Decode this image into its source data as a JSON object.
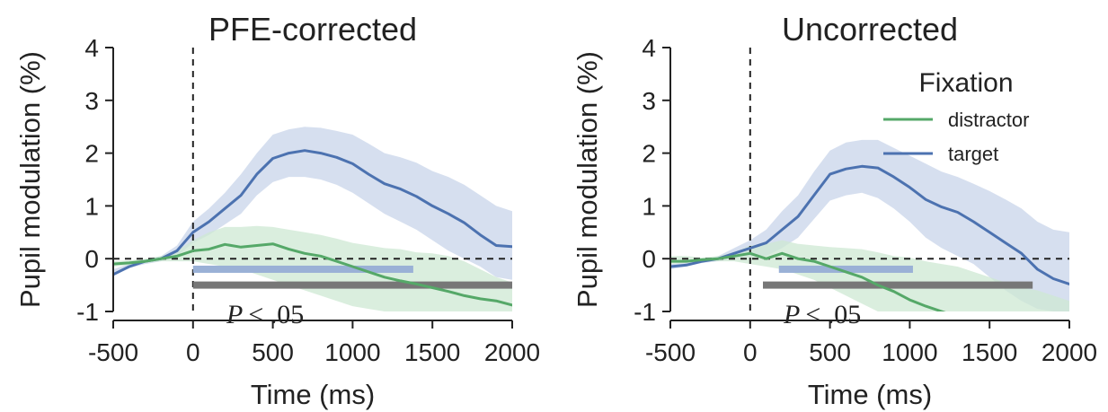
{
  "colors": {
    "target": "#4c72b0",
    "distractor": "#55a868",
    "target_band": "#c8d4ea",
    "distractor_band": "#cde8d3",
    "sig_target": "#9ab1d6",
    "sig_both": "#777777",
    "axis": "#222222"
  },
  "chart_data": [
    {
      "type": "line",
      "title": "PFE-corrected",
      "xlabel": "Time (ms)",
      "ylabel": "Pupil modulation (%)",
      "xlim": [
        -500,
        2000
      ],
      "ylim": [
        -1,
        4
      ],
      "xticks": [
        -500,
        0,
        500,
        1000,
        1500,
        2000
      ],
      "yticks": [
        -1,
        0,
        1,
        2,
        3,
        4
      ],
      "xtick_labels": [
        "-500",
        "0",
        "500",
        "1000",
        "1500",
        "2000"
      ],
      "ytick_labels": [
        "-1",
        "0",
        "1",
        "2",
        "3",
        "4"
      ],
      "grid": false,
      "reference_lines": [
        {
          "axis": "x",
          "value": 0,
          "style": "dashed"
        },
        {
          "axis": "y",
          "value": 0,
          "style": "dashed"
        }
      ],
      "x": [
        -500,
        -400,
        -300,
        -200,
        -100,
        0,
        100,
        200,
        300,
        400,
        500,
        600,
        700,
        800,
        900,
        1000,
        1100,
        1200,
        1300,
        1400,
        1500,
        1600,
        1700,
        1800,
        1900,
        2000
      ],
      "series": [
        {
          "name": "target",
          "color_key": "target",
          "values": [
            -0.3,
            -0.15,
            -0.05,
            0.0,
            0.15,
            0.5,
            0.7,
            0.95,
            1.2,
            1.6,
            1.9,
            2.0,
            2.05,
            2.0,
            1.92,
            1.8,
            1.6,
            1.42,
            1.32,
            1.18,
            1.0,
            0.85,
            0.68,
            0.45,
            0.25,
            0.23
          ],
          "lower": [
            -0.3,
            -0.18,
            -0.1,
            -0.05,
            0.05,
            0.3,
            0.45,
            0.65,
            0.85,
            1.2,
            1.45,
            1.55,
            1.55,
            1.5,
            1.4,
            1.25,
            1.05,
            0.85,
            0.7,
            0.55,
            0.35,
            0.15,
            0.0,
            -0.15,
            -0.35,
            -0.4
          ],
          "upper": [
            -0.2,
            -0.1,
            -0.02,
            0.05,
            0.25,
            0.7,
            0.95,
            1.25,
            1.6,
            2.0,
            2.35,
            2.45,
            2.5,
            2.48,
            2.42,
            2.35,
            2.18,
            2.0,
            1.92,
            1.82,
            1.66,
            1.55,
            1.4,
            1.2,
            1.0,
            0.9
          ]
        },
        {
          "name": "distractor",
          "color_key": "distractor",
          "values": [
            -0.1,
            -0.08,
            -0.05,
            0.0,
            0.05,
            0.15,
            0.18,
            0.27,
            0.22,
            0.25,
            0.28,
            0.18,
            0.1,
            0.05,
            -0.05,
            -0.15,
            -0.25,
            -0.35,
            -0.42,
            -0.48,
            -0.55,
            -0.62,
            -0.7,
            -0.76,
            -0.8,
            -0.88
          ],
          "lower": [
            -0.15,
            -0.12,
            -0.08,
            -0.05,
            -0.05,
            -0.05,
            -0.1,
            -0.15,
            -0.2,
            -0.3,
            -0.4,
            -0.5,
            -0.6,
            -0.7,
            -0.8,
            -0.9,
            -0.95,
            -1.0,
            -1.0,
            -1.0,
            -1.0,
            -1.0,
            -1.0,
            -1.0,
            -1.0,
            -1.0
          ],
          "upper": [
            -0.05,
            -0.03,
            0.0,
            0.05,
            0.15,
            0.35,
            0.5,
            0.6,
            0.6,
            0.62,
            0.6,
            0.55,
            0.5,
            0.45,
            0.38,
            0.3,
            0.25,
            0.2,
            0.18,
            0.12,
            0.1,
            0.05,
            -0.05,
            -0.2,
            -0.35,
            -0.45
          ]
        }
      ],
      "significance_bars": [
        {
          "color_key": "sig_target",
          "y": -0.2,
          "from": 0,
          "to": 1380
        },
        {
          "color_key": "sig_both",
          "y": -0.5,
          "from": 0,
          "to": 2000
        }
      ],
      "annotation": {
        "p": "P",
        "rest": "< .05",
        "x": 200,
        "y": -1.0
      }
    },
    {
      "type": "line",
      "title": "Uncorrected",
      "xlabel": "Time (ms)",
      "ylabel": "Pupil modulation (%)",
      "xlim": [
        -500,
        2000
      ],
      "ylim": [
        -1,
        4
      ],
      "xticks": [
        -500,
        0,
        500,
        1000,
        1500,
        2000
      ],
      "yticks": [
        -1,
        0,
        1,
        2,
        3,
        4
      ],
      "xtick_labels": [
        "-500",
        "0",
        "500",
        "1000",
        "1500",
        "2000"
      ],
      "ytick_labels": [
        "-1",
        "0",
        "1",
        "2",
        "3",
        "4"
      ],
      "grid": false,
      "reference_lines": [
        {
          "axis": "x",
          "value": 0,
          "style": "dashed"
        },
        {
          "axis": "y",
          "value": 0,
          "style": "dashed"
        }
      ],
      "x": [
        -500,
        -400,
        -300,
        -200,
        -100,
        0,
        100,
        200,
        300,
        400,
        500,
        600,
        700,
        800,
        900,
        1000,
        1100,
        1200,
        1300,
        1400,
        1500,
        1600,
        1700,
        1800,
        1900,
        2000
      ],
      "series": [
        {
          "name": "target",
          "color_key": "target",
          "values": [
            -0.15,
            -0.12,
            -0.05,
            0.0,
            0.1,
            0.2,
            0.3,
            0.55,
            0.8,
            1.2,
            1.6,
            1.7,
            1.75,
            1.72,
            1.55,
            1.35,
            1.12,
            0.98,
            0.88,
            0.7,
            0.5,
            0.3,
            0.1,
            -0.2,
            -0.38,
            -0.48
          ],
          "lower": [
            -0.2,
            -0.15,
            -0.08,
            -0.05,
            0.0,
            0.05,
            0.05,
            0.2,
            0.4,
            0.75,
            1.1,
            1.2,
            1.25,
            1.15,
            0.95,
            0.7,
            0.4,
            0.2,
            0.05,
            -0.1,
            -0.35,
            -0.6,
            -0.8,
            -0.95,
            -1.0,
            -1.0
          ],
          "upper": [
            -0.1,
            -0.08,
            -0.02,
            0.05,
            0.2,
            0.35,
            0.55,
            0.9,
            1.2,
            1.65,
            2.05,
            2.2,
            2.25,
            2.25,
            2.1,
            1.95,
            1.8,
            1.65,
            1.55,
            1.42,
            1.28,
            1.12,
            0.95,
            0.7,
            0.55,
            0.5
          ]
        },
        {
          "name": "distractor",
          "color_key": "distractor",
          "values": [
            -0.05,
            -0.05,
            -0.02,
            0.0,
            0.05,
            0.1,
            0.0,
            0.1,
            0.0,
            -0.05,
            -0.15,
            -0.25,
            -0.35,
            -0.5,
            -0.62,
            -0.78,
            -0.9,
            -1.0,
            -1.1,
            null,
            null,
            null,
            null,
            null,
            null,
            null
          ],
          "lower": [
            -0.1,
            -0.08,
            -0.05,
            -0.05,
            -0.05,
            -0.1,
            -0.15,
            -0.2,
            -0.3,
            -0.4,
            -0.55,
            -0.7,
            -0.85,
            -1.0,
            -1.0,
            -1.0,
            -1.0,
            -1.0,
            -1.0,
            -1.0,
            -1.0,
            -1.0,
            -1.0,
            -1.0,
            -1.0,
            -1.0
          ],
          "upper": [
            0.05,
            0.05,
            0.02,
            0.05,
            0.12,
            0.25,
            0.28,
            0.35,
            0.28,
            0.25,
            0.22,
            0.2,
            0.18,
            0.12,
            0.05,
            0.02,
            -0.05,
            -0.1,
            -0.15,
            -0.25,
            -0.35,
            -0.45,
            -0.55,
            -0.6,
            -0.7,
            -0.8
          ]
        }
      ],
      "significance_bars": [
        {
          "color_key": "sig_target",
          "y": -0.2,
          "from": 180,
          "to": 1020
        },
        {
          "color_key": "sig_both",
          "y": -0.5,
          "from": 80,
          "to": 1770
        }
      ],
      "annotation": {
        "p": "P",
        "rest": "< .05",
        "x": 200,
        "y": -1.0
      },
      "legend": {
        "title": "Fixation",
        "placement": "top-right",
        "entries": [
          {
            "label": "distractor",
            "color_key": "distractor"
          },
          {
            "label": "target",
            "color_key": "target"
          }
        ]
      }
    }
  ]
}
